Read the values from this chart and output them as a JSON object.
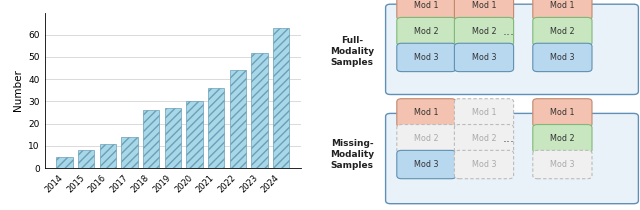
{
  "years": [
    2014,
    2015,
    2016,
    2017,
    2018,
    2019,
    2020,
    2021,
    2022,
    2023,
    2024
  ],
  "values": [
    5,
    8,
    11,
    14,
    26,
    27,
    30,
    36,
    44,
    52,
    63
  ],
  "bar_facecolor": "#a8d8e8",
  "bar_edgecolor": "#6a9fb8",
  "hatch": "////",
  "ylabel": "Number",
  "ylim": [
    0,
    70
  ],
  "yticks": [
    0,
    10,
    20,
    30,
    40,
    50,
    60
  ],
  "grid_color": "#cccccc",
  "background_color": "#ffffff",
  "mod1_color": "#f4c2b0",
  "mod2_color": "#c8e6c0",
  "mod3_color": "#b8d8f0",
  "mod1_edge": "#c08870",
  "mod2_edge": "#80b878",
  "mod3_edge": "#6090b0",
  "outer_box_color": "#6090b8",
  "outer_box_face": "#e8f2f8",
  "label_color": "#222222",
  "dashed_face": "#f0f0f0",
  "dashed_edge": "#bbbbbb",
  "dashed_text_color": "#aaaaaa"
}
